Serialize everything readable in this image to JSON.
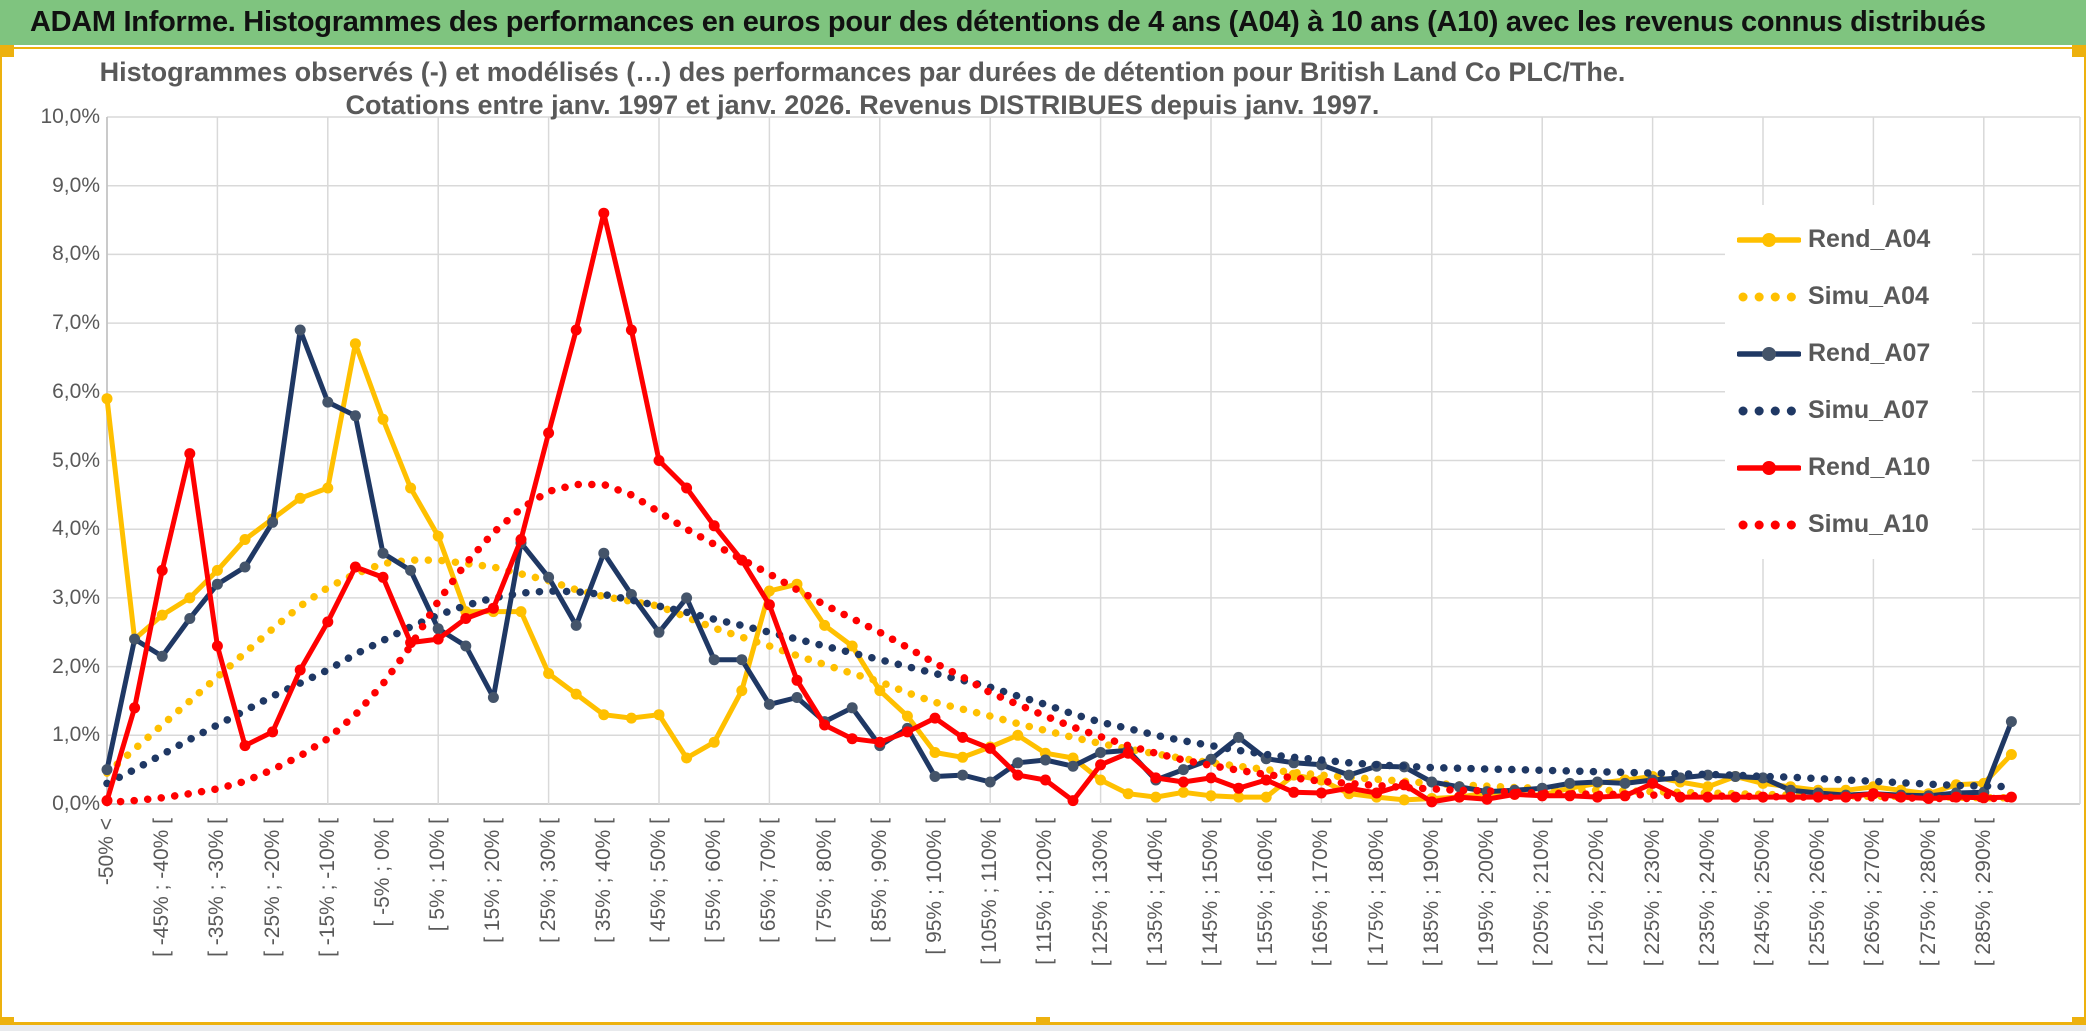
{
  "header": {
    "title": "ADAM Informe. Histogrammes des performances en euros pour des détentions de 4 ans (A04) à 10 ans (A10) avec les revenus connus distribués"
  },
  "chart_data": {
    "type": "line",
    "title_line1": "Histogrammes observés (-) et modélisés (…) des performances par durées de détention pour British Land Co PLC/The.",
    "title_line2": "Cotations entre janv. 1997 et janv. 2026. Revenus DISTRIBUES depuis janv. 1997.",
    "ylim": [
      0,
      10
    ],
    "ytick_labels": [
      "0,0%",
      "1,0%",
      "2,0%",
      "3,0%",
      "4,0%",
      "5,0%",
      "6,0%",
      "7,0%",
      "8,0%",
      "9,0%",
      "10,0%"
    ],
    "n_points": 70,
    "x_labels_every_n_bins": 2,
    "x_gridline_every_n_bins": 4,
    "grid": true,
    "legend_position": "right-inside",
    "categories_labeled": [
      "-50% <",
      "[ -45% ; -40% [",
      "[ -35% ; -30% [",
      "[ -25% ; -20% [",
      "[ -15% ; -10% [",
      "[ -5% ; 0% [",
      "[ 5% ; 10% [",
      "[ 15% ; 20% [",
      "[ 25% ; 30% [",
      "[ 35% ; 40% [",
      "[ 45% ; 50% [",
      "[ 55% ; 60% [",
      "[ 65% ; 70% [",
      "[ 75% ; 80% [",
      "[ 85% ; 90% [",
      "[ 95% ; 100% [",
      "[ 105% ; 110% [",
      "[ 115% ; 120% [",
      "[ 125% ; 130% [",
      "[ 135% ; 140% [",
      "[ 145% ; 150% [",
      "[ 155% ; 160% [",
      "[ 165% ; 170% [",
      "[ 175% ; 180% [",
      "[ 185% ; 190% [",
      "[ 195% ; 200% [",
      "[ 205% ; 210% [",
      "[ 215% ; 220% [",
      "[ 225% ; 230% [",
      "[ 235% ; 240% [",
      "[ 245% ; 250% [",
      "[ 255% ; 260% [",
      "[ 265% ; 270% [",
      "[ 275% ; 280% [",
      "[ 285% ; 290% ["
    ],
    "series": [
      {
        "name": "Rend_A04",
        "style": "solid",
        "color": "#FFC000",
        "marker_color": "#FFC000",
        "values": [
          5.9,
          2.4,
          2.75,
          3.0,
          3.4,
          3.85,
          4.15,
          4.45,
          4.6,
          6.7,
          5.6,
          4.6,
          3.9,
          2.8,
          2.8,
          2.8,
          1.9,
          1.6,
          1.3,
          1.25,
          1.3,
          0.67,
          0.9,
          1.65,
          3.1,
          3.2,
          2.6,
          2.3,
          1.65,
          1.28,
          0.75,
          0.68,
          0.83,
          1.0,
          0.74,
          0.67,
          0.35,
          0.15,
          0.1,
          0.17,
          0.12,
          0.1,
          0.1,
          0.42,
          0.35,
          0.15,
          0.1,
          0.06,
          0.08,
          0.1,
          0.16,
          0.14,
          0.13,
          0.23,
          0.3,
          0.35,
          0.4,
          0.32,
          0.25,
          0.4,
          0.3,
          0.25,
          0.2,
          0.2,
          0.25,
          0.2,
          0.15,
          0.28,
          0.3,
          0.72
        ]
      },
      {
        "name": "Simu_A04",
        "style": "dotted",
        "color": "#FFC000",
        "values": [
          0.45,
          0.8,
          1.15,
          1.5,
          1.85,
          2.2,
          2.55,
          2.88,
          3.15,
          3.35,
          3.5,
          3.55,
          3.55,
          3.5,
          3.45,
          3.35,
          3.25,
          3.12,
          3.02,
          2.95,
          2.88,
          2.72,
          2.56,
          2.43,
          2.3,
          2.16,
          2.03,
          1.9,
          1.78,
          1.62,
          1.48,
          1.38,
          1.28,
          1.17,
          1.07,
          0.97,
          0.88,
          0.8,
          0.73,
          0.66,
          0.6,
          0.55,
          0.5,
          0.46,
          0.42,
          0.39,
          0.36,
          0.33,
          0.3,
          0.28,
          0.26,
          0.24,
          0.23,
          0.21,
          0.2,
          0.19,
          0.18,
          0.17,
          0.16,
          0.15,
          0.14,
          0.13,
          0.13,
          0.12,
          0.11,
          0.11,
          0.1,
          0.1,
          0.09,
          0.09
        ]
      },
      {
        "name": "Rend_A07",
        "style": "solid",
        "color": "#1F3864",
        "marker_color": "#44546A",
        "values": [
          0.5,
          2.4,
          2.15,
          2.7,
          3.2,
          3.45,
          4.1,
          6.9,
          5.85,
          5.65,
          3.65,
          3.4,
          2.55,
          2.3,
          1.55,
          3.8,
          3.3,
          2.6,
          3.65,
          3.05,
          2.5,
          3.0,
          2.1,
          2.1,
          1.45,
          1.55,
          1.2,
          1.4,
          0.85,
          1.1,
          0.4,
          0.42,
          0.32,
          0.6,
          0.64,
          0.55,
          0.75,
          0.78,
          0.35,
          0.5,
          0.65,
          0.97,
          0.66,
          0.6,
          0.57,
          0.42,
          0.55,
          0.54,
          0.32,
          0.25,
          0.18,
          0.2,
          0.23,
          0.3,
          0.32,
          0.3,
          0.35,
          0.38,
          0.42,
          0.4,
          0.38,
          0.2,
          0.16,
          0.13,
          0.15,
          0.13,
          0.12,
          0.16,
          0.17,
          1.2
        ]
      },
      {
        "name": "Simu_A07",
        "style": "dotted",
        "color": "#1F3864",
        "values": [
          0.3,
          0.5,
          0.72,
          0.94,
          1.15,
          1.36,
          1.57,
          1.76,
          1.95,
          2.18,
          2.38,
          2.58,
          2.75,
          2.89,
          3.0,
          3.07,
          3.1,
          3.09,
          3.05,
          2.97,
          2.88,
          2.79,
          2.69,
          2.6,
          2.5,
          2.4,
          2.3,
          2.2,
          2.1,
          2.0,
          1.9,
          1.8,
          1.7,
          1.57,
          1.45,
          1.31,
          1.19,
          1.1,
          1.0,
          0.92,
          0.85,
          0.78,
          0.72,
          0.68,
          0.64,
          0.6,
          0.57,
          0.55,
          0.53,
          0.52,
          0.51,
          0.5,
          0.49,
          0.48,
          0.47,
          0.46,
          0.45,
          0.44,
          0.43,
          0.42,
          0.4,
          0.39,
          0.37,
          0.35,
          0.33,
          0.31,
          0.29,
          0.27,
          0.26,
          0.25
        ]
      },
      {
        "name": "Rend_A10",
        "style": "solid",
        "color": "#FF0000",
        "marker_color": "#FF0000",
        "values": [
          0.05,
          1.4,
          3.4,
          5.1,
          2.3,
          0.85,
          1.05,
          1.95,
          2.65,
          3.45,
          3.3,
          2.35,
          2.4,
          2.7,
          2.85,
          3.85,
          5.4,
          6.9,
          8.6,
          6.9,
          5.0,
          4.6,
          4.05,
          3.55,
          2.9,
          1.8,
          1.15,
          0.95,
          0.9,
          1.05,
          1.25,
          0.97,
          0.81,
          0.42,
          0.35,
          0.05,
          0.57,
          0.74,
          0.38,
          0.32,
          0.38,
          0.23,
          0.35,
          0.17,
          0.16,
          0.23,
          0.16,
          0.28,
          0.03,
          0.1,
          0.07,
          0.14,
          0.12,
          0.12,
          0.1,
          0.12,
          0.3,
          0.1,
          0.1,
          0.1,
          0.1,
          0.1,
          0.1,
          0.1,
          0.15,
          0.1,
          0.08,
          0.1,
          0.09,
          0.1
        ]
      },
      {
        "name": "Simu_A10",
        "style": "dotted",
        "color": "#FF0000",
        "values": [
          0.02,
          0.05,
          0.09,
          0.15,
          0.22,
          0.33,
          0.5,
          0.7,
          0.95,
          1.3,
          1.75,
          2.3,
          2.95,
          3.5,
          3.95,
          4.3,
          4.55,
          4.65,
          4.65,
          4.5,
          4.25,
          4.0,
          3.78,
          3.56,
          3.35,
          3.12,
          2.9,
          2.7,
          2.5,
          2.28,
          2.05,
          1.85,
          1.62,
          1.45,
          1.28,
          1.12,
          0.98,
          0.85,
          0.74,
          0.64,
          0.56,
          0.49,
          0.43,
          0.38,
          0.33,
          0.3,
          0.27,
          0.24,
          0.22,
          0.2,
          0.19,
          0.17,
          0.16,
          0.15,
          0.14,
          0.14,
          0.13,
          0.12,
          0.12,
          0.11,
          0.11,
          0.1,
          0.1,
          0.09,
          0.09,
          0.09,
          0.08,
          0.08,
          0.08,
          0.08
        ]
      }
    ]
  },
  "colors": {
    "header_green": "#7fc47f",
    "selection_gold": "#edb10e",
    "grid": "#d9d9d9",
    "axis": "#bfbfbf",
    "text_gray": "#595959"
  }
}
